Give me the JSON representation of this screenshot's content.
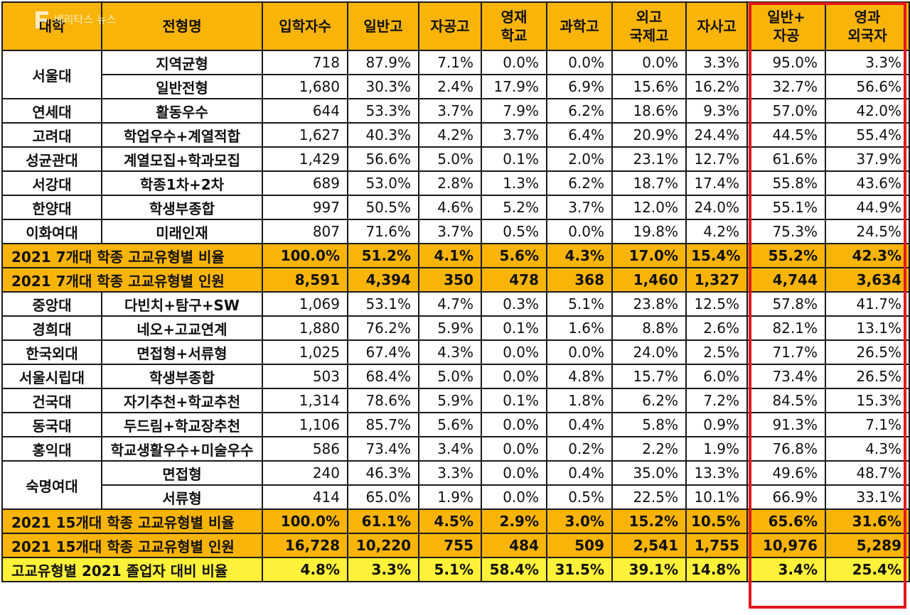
{
  "headers": [
    "대학",
    "전형명",
    "입학자수",
    "일반고",
    "자공고",
    "영재\n학교",
    "과학고",
    "외고\n국제고",
    "자사고",
    "일반+\n자공",
    "영과\n외국자"
  ],
  "watermark": "베리타스 뉴스",
  "groups": [
    {
      "university": "서울대",
      "rows": [
        {
          "track": "지역균형",
          "values": [
            "718",
            "87.9%",
            "7.1%",
            "0.0%",
            "0.0%",
            "0.0%",
            "3.3%",
            "95.0%",
            "3.3%"
          ]
        },
        {
          "track": "일반전형",
          "values": [
            "1,680",
            "30.3%",
            "2.4%",
            "17.9%",
            "6.9%",
            "15.6%",
            "16.2%",
            "32.7%",
            "56.6%"
          ]
        }
      ]
    },
    {
      "university": "연세대",
      "rows": [
        {
          "track": "활동우수",
          "values": [
            "644",
            "53.3%",
            "3.7%",
            "7.9%",
            "6.2%",
            "18.6%",
            "9.3%",
            "57.0%",
            "42.0%"
          ]
        }
      ]
    },
    {
      "university": "고려대",
      "rows": [
        {
          "track": "학업우수+계열적합",
          "values": [
            "1,627",
            "40.3%",
            "4.2%",
            "3.7%",
            "6.4%",
            "20.9%",
            "24.4%",
            "44.5%",
            "55.4%"
          ]
        }
      ]
    },
    {
      "university": "성균관대",
      "rows": [
        {
          "track": "계열모집+학과모집",
          "values": [
            "1,429",
            "56.6%",
            "5.0%",
            "0.1%",
            "2.0%",
            "23.1%",
            "12.7%",
            "61.6%",
            "37.9%"
          ]
        }
      ]
    },
    {
      "university": "서강대",
      "rows": [
        {
          "track": "학종1차+2차",
          "values": [
            "689",
            "53.0%",
            "2.8%",
            "1.3%",
            "6.2%",
            "18.7%",
            "17.4%",
            "55.8%",
            "43.6%"
          ]
        }
      ]
    },
    {
      "university": "한양대",
      "rows": [
        {
          "track": "학생부종합",
          "values": [
            "997",
            "50.5%",
            "4.6%",
            "5.2%",
            "3.7%",
            "12.0%",
            "24.0%",
            "55.1%",
            "44.9%"
          ]
        }
      ]
    },
    {
      "university": "이화여대",
      "rows": [
        {
          "track": "미래인재",
          "values": [
            "807",
            "71.6%",
            "3.7%",
            "0.5%",
            "0.0%",
            "19.8%",
            "4.2%",
            "75.3%",
            "24.5%"
          ]
        }
      ]
    }
  ],
  "summary7": [
    {
      "label": "2021 7개대 학종 고교유형별 비율",
      "values": [
        "100.0%",
        "51.2%",
        "4.1%",
        "5.6%",
        "4.3%",
        "17.0%",
        "15.4%",
        "55.2%",
        "42.3%"
      ]
    },
    {
      "label": "2021 7개대 학종 고교유형별 인원",
      "values": [
        "8,591",
        "4,394",
        "350",
        "478",
        "368",
        "1,460",
        "1,327",
        "4,744",
        "3,634"
      ]
    }
  ],
  "groups2": [
    {
      "university": "중앙대",
      "rows": [
        {
          "track": "다빈치+탐구+SW",
          "values": [
            "1,069",
            "53.1%",
            "4.7%",
            "0.3%",
            "5.1%",
            "23.8%",
            "12.5%",
            "57.8%",
            "41.7%"
          ]
        }
      ]
    },
    {
      "university": "경희대",
      "rows": [
        {
          "track": "네오+고교연계",
          "values": [
            "1,880",
            "76.2%",
            "5.9%",
            "0.1%",
            "1.6%",
            "8.8%",
            "2.6%",
            "82.1%",
            "13.1%"
          ]
        }
      ]
    },
    {
      "university": "한국외대",
      "rows": [
        {
          "track": "면접형+서류형",
          "values": [
            "1,025",
            "67.4%",
            "4.3%",
            "0.0%",
            "0.0%",
            "24.0%",
            "2.5%",
            "71.7%",
            "26.5%"
          ]
        }
      ]
    },
    {
      "university": "서울시립대",
      "rows": [
        {
          "track": "학생부종합",
          "values": [
            "503",
            "68.4%",
            "5.0%",
            "0.0%",
            "4.8%",
            "15.7%",
            "6.0%",
            "73.4%",
            "26.5%"
          ]
        }
      ]
    },
    {
      "university": "건국대",
      "rows": [
        {
          "track": "자기추천+학교추천",
          "values": [
            "1,314",
            "78.6%",
            "5.9%",
            "0.1%",
            "1.8%",
            "6.2%",
            "7.2%",
            "84.5%",
            "15.3%"
          ]
        }
      ]
    },
    {
      "university": "동국대",
      "rows": [
        {
          "track": "두드림+학교장추천",
          "values": [
            "1,106",
            "85.7%",
            "5.6%",
            "0.0%",
            "0.4%",
            "5.8%",
            "0.9%",
            "91.3%",
            "7.1%"
          ]
        }
      ]
    },
    {
      "university": "홍익대",
      "rows": [
        {
          "track": "학교생활우수+미술우수",
          "values": [
            "586",
            "73.4%",
            "3.4%",
            "0.0%",
            "0.2%",
            "2.2%",
            "1.9%",
            "76.8%",
            "4.3%"
          ]
        }
      ]
    },
    {
      "university": "숙명여대",
      "rows": [
        {
          "track": "면접형",
          "values": [
            "240",
            "46.3%",
            "3.3%",
            "0.0%",
            "0.4%",
            "35.0%",
            "13.3%",
            "49.6%",
            "48.7%"
          ]
        },
        {
          "track": "서류형",
          "values": [
            "414",
            "65.0%",
            "1.9%",
            "0.0%",
            "0.5%",
            "22.5%",
            "10.1%",
            "66.9%",
            "33.1%"
          ]
        }
      ]
    }
  ],
  "summary15": [
    {
      "label": "2021 15개대 학종 고교유형별 비율",
      "values": [
        "100.0%",
        "61.1%",
        "4.5%",
        "2.9%",
        "3.0%",
        "15.2%",
        "10.5%",
        "65.6%",
        "31.6%"
      ]
    },
    {
      "label": "2021 15개대 학종 고교유형별 인원",
      "values": [
        "16,728",
        "10,220",
        "755",
        "484",
        "509",
        "2,541",
        "1,755",
        "10,976",
        "5,289"
      ]
    }
  ],
  "graduates": {
    "label": "고교유형별 2021 졸업자 대비 비율",
    "values": [
      "4.8%",
      "3.3%",
      "5.1%",
      "58.4%",
      "31.5%",
      "39.1%",
      "14.8%",
      "3.4%",
      "25.4%"
    ]
  },
  "colors": {
    "header": "#f9b40a",
    "summary": "#f9b40a",
    "graduates": "#fdf13a",
    "highlight": "#e3171e"
  }
}
